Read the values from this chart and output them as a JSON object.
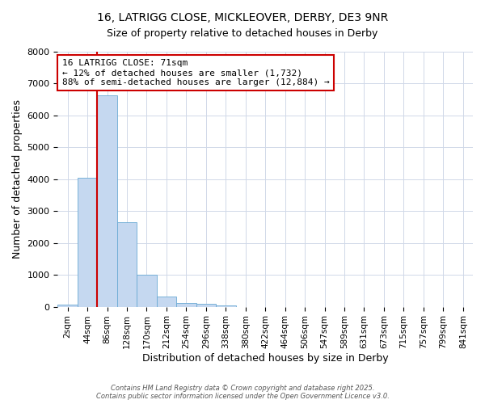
{
  "title_line1": "16, LATRIGG CLOSE, MICKLEOVER, DERBY, DE3 9NR",
  "title_line2": "Size of property relative to detached houses in Derby",
  "xlabel": "Distribution of detached houses by size in Derby",
  "ylabel": "Number of detached properties",
  "categories": [
    "2sqm",
    "44sqm",
    "86sqm",
    "128sqm",
    "170sqm",
    "212sqm",
    "254sqm",
    "296sqm",
    "338sqm",
    "380sqm",
    "422sqm",
    "464sqm",
    "506sqm",
    "547sqm",
    "589sqm",
    "631sqm",
    "673sqm",
    "715sqm",
    "757sqm",
    "799sqm",
    "841sqm"
  ],
  "values": [
    60,
    4050,
    6620,
    2650,
    1010,
    320,
    120,
    80,
    50,
    0,
    0,
    0,
    0,
    0,
    0,
    0,
    0,
    0,
    0,
    0,
    0
  ],
  "bar_color": "#c5d8f0",
  "bar_edgecolor": "#6aaad4",
  "vline_x": 1.5,
  "vline_color": "#cc0000",
  "ylim": [
    0,
    8000
  ],
  "yticks": [
    0,
    1000,
    2000,
    3000,
    4000,
    5000,
    6000,
    7000,
    8000
  ],
  "annotation_title": "16 LATRIGG CLOSE: 71sqm",
  "annotation_line1": "← 12% of detached houses are smaller (1,732)",
  "annotation_line2": "88% of semi-detached houses are larger (12,884) →",
  "annotation_box_color": "#cc0000",
  "footer_line1": "Contains HM Land Registry data © Crown copyright and database right 2025.",
  "footer_line2": "Contains public sector information licensed under the Open Government Licence v3.0.",
  "background_color": "#ffffff",
  "grid_color": "#d0d8e8"
}
